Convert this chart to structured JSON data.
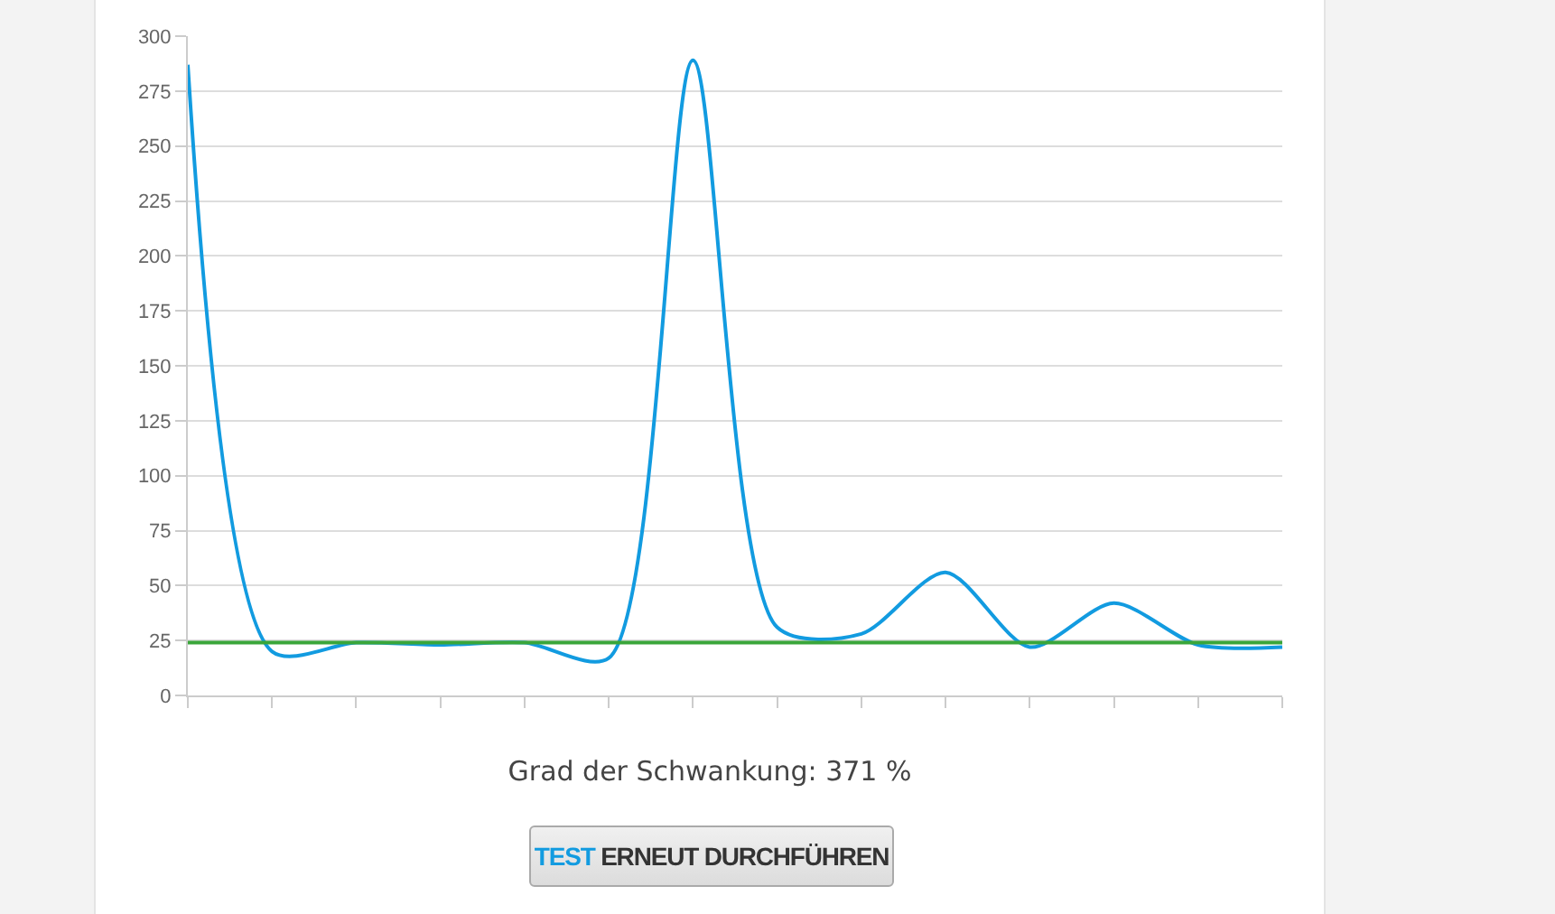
{
  "chart_data": {
    "type": "line",
    "categories": [
      null,
      null,
      null,
      null,
      null,
      null,
      null,
      null,
      null,
      null,
      null,
      null,
      null,
      null
    ],
    "series": [
      {
        "color": "#129be0",
        "values": [
          287,
          20,
          24,
          23,
          24,
          17,
          289,
          31,
          28,
          56,
          22,
          42,
          23,
          22
        ]
      }
    ],
    "ylim": [
      0,
      300
    ],
    "yticks": [
      0,
      25,
      50,
      75,
      100,
      125,
      150,
      175,
      200,
      225,
      250,
      275,
      300
    ],
    "grid": "y",
    "marker": "none",
    "line_style": "solid",
    "ref_lines": [
      {
        "axis": "y",
        "value": 24,
        "color": "#3aa63a"
      }
    ],
    "annotations": [
      "Grad der Schwankung: 371 %",
      "TEST ERNEUT DURCHFÜHREN"
    ]
  }
}
